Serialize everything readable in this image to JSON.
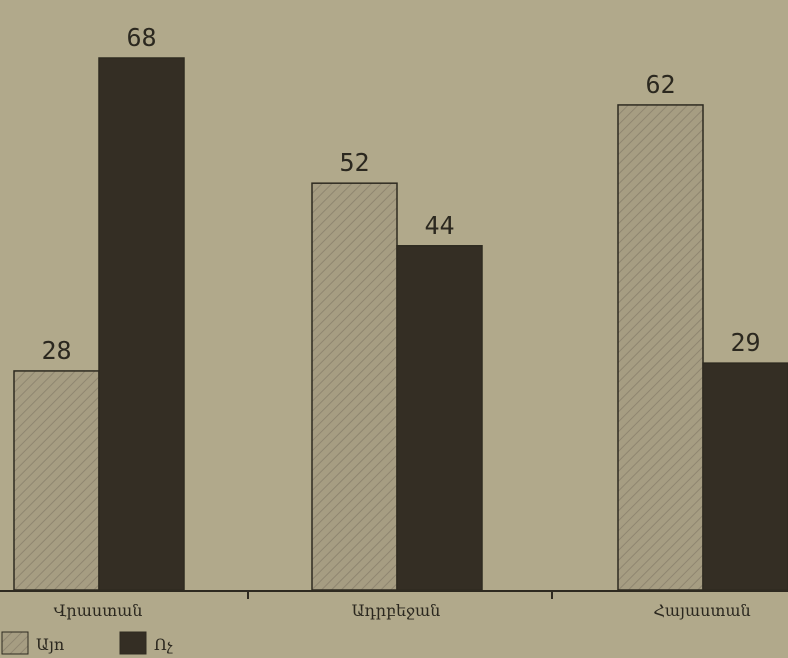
{
  "chart_data": {
    "type": "bar",
    "title": "",
    "xlabel": "",
    "ylabel": "",
    "categories": [
      "Վրաստան",
      "Ադրբեջան",
      "Հայաստան"
    ],
    "series": [
      {
        "name": "Այո",
        "values": [
          28,
          52,
          62
        ],
        "color": "#a69d82"
      },
      {
        "name": "Ոչ",
        "values": [
          68,
          44,
          29
        ],
        "color": "#342e24"
      }
    ],
    "ylim": [
      0,
      72
    ],
    "grid": false,
    "legend": "bottom-left"
  }
}
